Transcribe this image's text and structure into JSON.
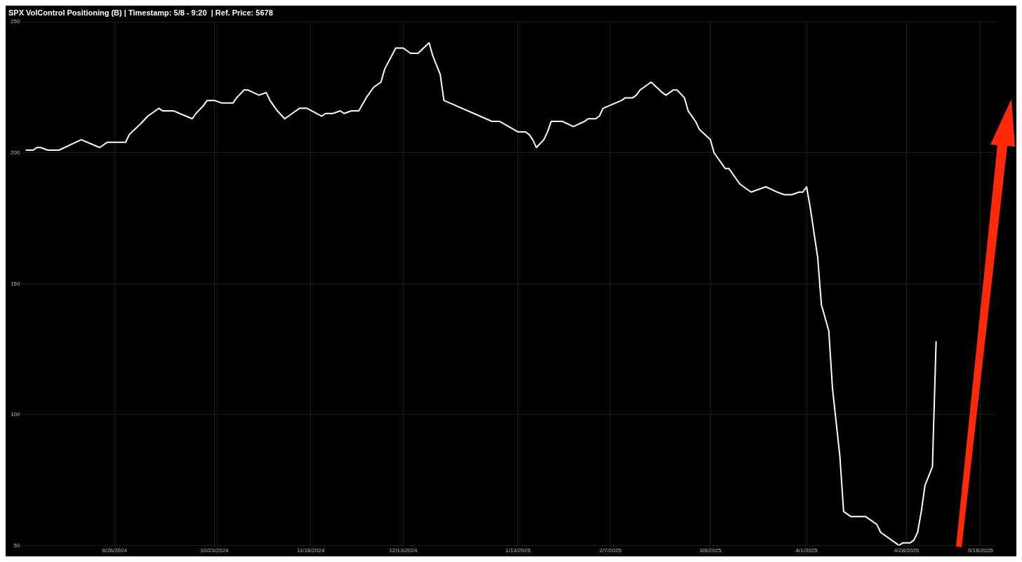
{
  "chart_data": {
    "type": "line",
    "title": "SPX VolControl Positioning (B) | Timestamp: 5/8 - 9:20  | Ref. Price: 5678",
    "x": [
      "2024-09-02",
      "2024-09-04",
      "2024-09-05",
      "2024-09-06",
      "2024-09-08",
      "2024-09-11",
      "2024-09-17",
      "2024-09-22",
      "2024-09-24",
      "2024-09-29",
      "2024-09-30",
      "2024-10-03",
      "2024-10-05",
      "2024-10-07",
      "2024-10-08",
      "2024-10-09",
      "2024-10-12",
      "2024-10-17",
      "2024-10-18",
      "2024-10-20",
      "2024-10-21",
      "2024-10-23",
      "2024-10-25",
      "2024-10-28",
      "2024-10-29",
      "2024-10-31",
      "2024-11-01",
      "2024-11-04",
      "2024-11-06",
      "2024-11-07",
      "2024-11-09",
      "2024-11-11",
      "2024-11-12",
      "2024-11-14",
      "2024-11-15",
      "2024-11-17",
      "2024-11-21",
      "2024-11-22",
      "2024-11-24",
      "2024-11-26",
      "2024-11-27",
      "2024-11-29",
      "2024-12-01",
      "2024-12-03",
      "2024-12-05",
      "2024-12-07",
      "2024-12-08",
      "2024-12-11",
      "2024-12-13",
      "2024-12-15",
      "2024-12-17",
      "2024-12-20",
      "2024-12-21",
      "2024-12-23",
      "2024-12-24",
      "2025-01-06",
      "2025-01-08",
      "2025-01-13",
      "2025-01-15",
      "2025-01-16",
      "2025-01-17",
      "2025-01-18",
      "2025-01-20",
      "2025-01-21",
      "2025-01-22",
      "2025-01-25",
      "2025-01-28",
      "2025-01-31",
      "2025-02-01",
      "2025-02-03",
      "2025-02-04",
      "2025-02-05",
      "2025-02-10",
      "2025-02-11",
      "2025-02-13",
      "2025-02-14",
      "2025-02-15",
      "2025-02-17",
      "2025-02-18",
      "2025-02-21",
      "2025-02-22",
      "2025-02-24",
      "2025-02-25",
      "2025-02-27",
      "2025-02-28",
      "2025-03-02",
      "2025-03-03",
      "2025-03-06",
      "2025-03-07",
      "2025-03-10",
      "2025-03-11",
      "2025-03-14",
      "2025-03-16",
      "2025-03-17",
      "2025-03-21",
      "2025-03-24",
      "2025-03-26",
      "2025-03-28",
      "2025-03-30",
      "2025-03-31",
      "2025-04-01",
      "2025-04-02",
      "2025-04-04",
      "2025-04-05",
      "2025-04-07",
      "2025-04-08",
      "2025-04-10",
      "2025-04-11",
      "2025-04-13",
      "2025-04-17",
      "2025-04-19",
      "2025-04-20",
      "2025-04-21",
      "2025-04-24",
      "2025-04-25",
      "2025-04-26",
      "2025-04-27",
      "2025-04-29",
      "2025-04-30",
      "2025-05-01",
      "2025-05-02",
      "2025-05-03",
      "2025-05-05",
      "2025-05-06"
    ],
    "series": [
      {
        "color": "#ffffff",
        "values": [
          201,
          201,
          202,
          202,
          201,
          201,
          205,
          202,
          204,
          204,
          207,
          211,
          214,
          216,
          217,
          216,
          216,
          213,
          215,
          218,
          220,
          220,
          219,
          219,
          221,
          224,
          224,
          222,
          223,
          220,
          216,
          213,
          214,
          216,
          217,
          217,
          214,
          215,
          215,
          216,
          215,
          216,
          216,
          221,
          225,
          227,
          232,
          240,
          240,
          238,
          238,
          242,
          237,
          230,
          220,
          212,
          212,
          208,
          208,
          207,
          205,
          202,
          205,
          208,
          212,
          212,
          210,
          212,
          213,
          213,
          214,
          217,
          220,
          221,
          221,
          222,
          224,
          226,
          227,
          223,
          222,
          224,
          224,
          221,
          216,
          212,
          209,
          205,
          200,
          194,
          194,
          188,
          186,
          185,
          187,
          185,
          184,
          184,
          185,
          185,
          187,
          179,
          160,
          142,
          132,
          110,
          84,
          63,
          61,
          61,
          59,
          58,
          55,
          52,
          51,
          50,
          51,
          51,
          52,
          55,
          63,
          73,
          80,
          128
        ]
      }
    ],
    "xlim": [
      "2024-09-01",
      "2025-05-22"
    ],
    "xticks": [
      {
        "value": "2024-09-26",
        "label": "9/26/2024"
      },
      {
        "value": "2024-10-23",
        "label": "10/23/2024"
      },
      {
        "value": "2024-11-18",
        "label": "11/18/2024"
      },
      {
        "value": "2024-12-13",
        "label": "12/13/2024"
      },
      {
        "value": "2025-01-13",
        "label": "1/13/2025"
      },
      {
        "value": "2025-02-07",
        "label": "2/7/2025"
      },
      {
        "value": "2025-03-06",
        "label": "3/6/2025"
      },
      {
        "value": "2025-04-01",
        "label": "4/1/2025"
      },
      {
        "value": "2025-04-28",
        "label": "4/28/2025"
      },
      {
        "value": "2025-05-18",
        "label": "5/18/2025"
      }
    ],
    "ylim": [
      50,
      250
    ],
    "yticks": [
      50,
      100,
      150,
      200,
      250
    ],
    "grid": true,
    "legend": false,
    "marker": "none",
    "line_style": "solid"
  }
}
